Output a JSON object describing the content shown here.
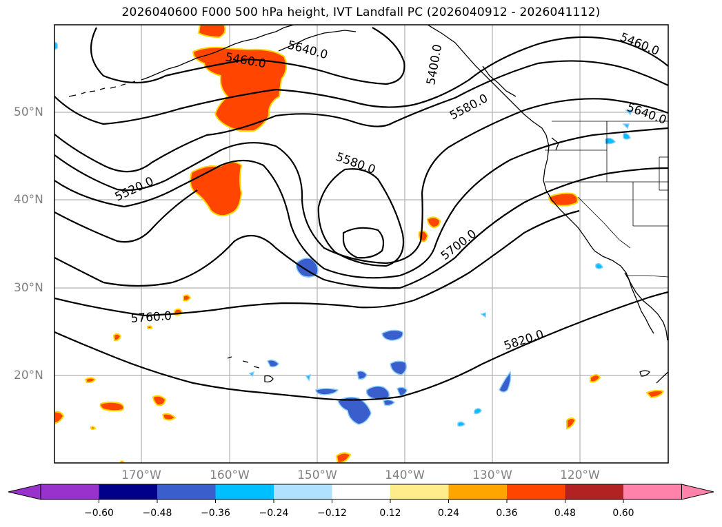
{
  "title": "2026040600 F000 500 hPa height, IVT Landfall PC (2026040912 - 2026041112)",
  "lat_labels": [
    "50°N",
    "40°N",
    "30°N",
    "20°N"
  ],
  "lon_labels": [
    "170°W",
    "160°W",
    "150°W",
    "140°W",
    "130°W",
    "120°W"
  ],
  "contour_labels": [
    "5460.0",
    "5400.0",
    "5520.0",
    "5580.0",
    "5580.0",
    "5640.0",
    "5700.0",
    "5760.0",
    "5820.0",
    "5460.0",
    "5640.0"
  ],
  "colorbar": {
    "ticks": [
      "−0.60",
      "−0.48",
      "−0.36",
      "−0.24",
      "−0.12",
      "0.12",
      "0.24",
      "0.36",
      "0.48",
      "0.60"
    ],
    "colors": [
      "#9932cc",
      "#00008b",
      "#3a5fcd",
      "#00bfff",
      "#b0e2ff",
      "#ffffff",
      "#ffec8b",
      "#ffa500",
      "#ff4500",
      "#b22222",
      "#ff82ab"
    ]
  },
  "colors": {
    "positive": "#ff4500",
    "negative": "#3a5fcd",
    "contour": "#000000",
    "grid": "#b0b0b0"
  }
}
